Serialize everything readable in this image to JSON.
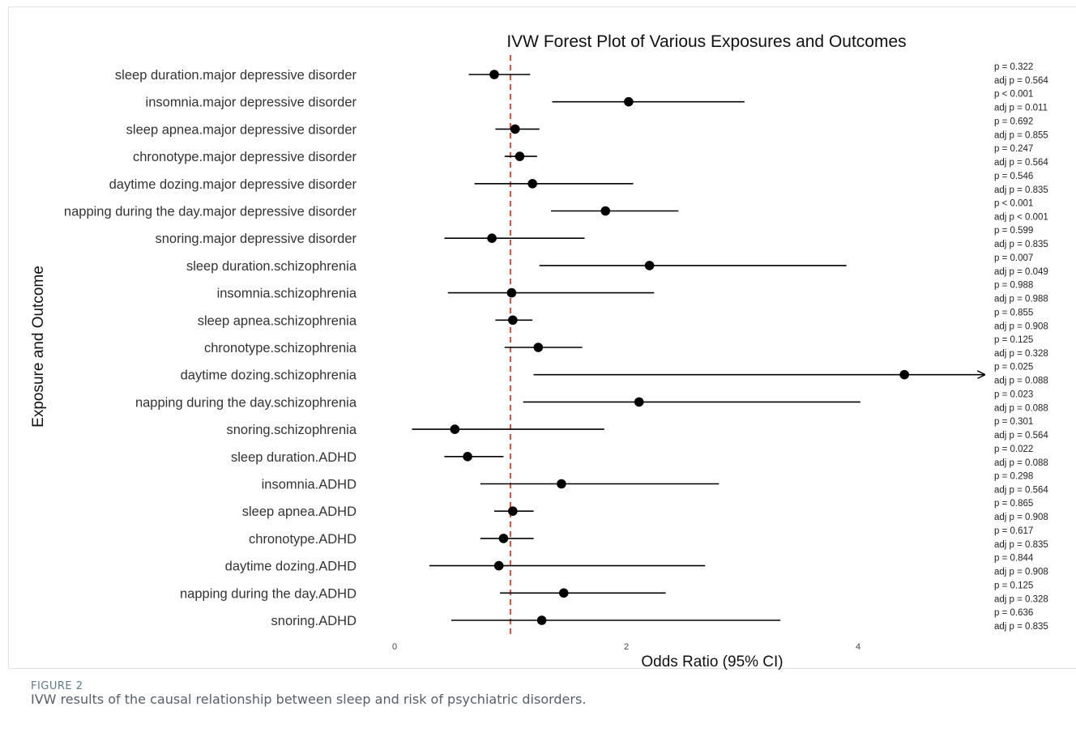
{
  "figure": {
    "label": "FIGURE 2",
    "caption": "IVW results of the causal relationship between sleep and risk of psychiatric disorders."
  },
  "chart_data": {
    "type": "forest",
    "title": "IVW Forest Plot of Various Exposures and Outcomes",
    "xlabel": "Odds Ratio (95% CI)",
    "ylabel": "Exposure and Outcome",
    "xlim": [
      0,
      5
    ],
    "xticks": [
      0,
      2,
      4
    ],
    "reference_line": 1,
    "colors": {
      "reference_line": "#e8392b",
      "point": "#000000",
      "ci": "#000000"
    },
    "rows": [
      {
        "label": "sleep duration.major depressive disorder",
        "or": 0.86,
        "lower": 0.64,
        "upper": 1.17,
        "p": "p = 0.322",
        "adj_p": "adj p = 0.564"
      },
      {
        "label": "insomnia.major depressive disorder",
        "or": 2.02,
        "lower": 1.36,
        "upper": 3.02,
        "p": "p < 0.001",
        "adj_p": "adj p = 0.011"
      },
      {
        "label": "sleep apnea.major depressive disorder",
        "or": 1.04,
        "lower": 0.87,
        "upper": 1.25,
        "p": "p = 0.692",
        "adj_p": "adj p = 0.855"
      },
      {
        "label": "chronotype.major depressive disorder",
        "or": 1.08,
        "lower": 0.95,
        "upper": 1.23,
        "p": "p = 0.247",
        "adj_p": "adj p = 0.564"
      },
      {
        "label": "daytime dozing.major depressive disorder",
        "or": 1.19,
        "lower": 0.69,
        "upper": 2.06,
        "p": "p = 0.546",
        "adj_p": "adj p = 0.835"
      },
      {
        "label": "napping during the day.major depressive disorder",
        "or": 1.82,
        "lower": 1.35,
        "upper": 2.45,
        "p": "p < 0.001",
        "adj_p": "adj p < 0.001"
      },
      {
        "label": "snoring.major depressive disorder",
        "or": 0.84,
        "lower": 0.43,
        "upper": 1.64,
        "p": "p = 0.599",
        "adj_p": "adj p = 0.835"
      },
      {
        "label": "sleep duration.schizophrenia",
        "or": 2.2,
        "lower": 1.25,
        "upper": 3.9,
        "p": "p = 0.007",
        "adj_p": "adj p = 0.049"
      },
      {
        "label": "insomnia.schizophrenia",
        "or": 1.01,
        "lower": 0.46,
        "upper": 2.24,
        "p": "p = 0.988",
        "adj_p": "adj p = 0.988"
      },
      {
        "label": "sleep apnea.schizophrenia",
        "or": 1.02,
        "lower": 0.87,
        "upper": 1.19,
        "p": "p = 0.855",
        "adj_p": "adj p = 0.908"
      },
      {
        "label": "chronotype.schizophrenia",
        "or": 1.24,
        "lower": 0.95,
        "upper": 1.62,
        "p": "p = 0.125",
        "adj_p": "adj p = 0.328"
      },
      {
        "label": "daytime dozing.schizophrenia",
        "or": 4.4,
        "lower": 1.2,
        "upper": 5.0,
        "p": "p = 0.025",
        "adj_p": "adj p = 0.088",
        "arrow": true
      },
      {
        "label": "napping during the day.schizophrenia",
        "or": 2.11,
        "lower": 1.11,
        "upper": 4.02,
        "p": "p = 0.023",
        "adj_p": "adj p = 0.088"
      },
      {
        "label": "snoring.schizophrenia",
        "or": 0.52,
        "lower": 0.15,
        "upper": 1.81,
        "p": "p = 0.301",
        "adj_p": "adj p = 0.564"
      },
      {
        "label": "sleep duration.ADHD",
        "or": 0.63,
        "lower": 0.43,
        "upper": 0.94,
        "p": "p = 0.022",
        "adj_p": "adj p = 0.088"
      },
      {
        "label": "insomnia.ADHD",
        "or": 1.44,
        "lower": 0.74,
        "upper": 2.8,
        "p": "p = 0.298",
        "adj_p": "adj p = 0.564"
      },
      {
        "label": "sleep apnea.ADHD",
        "or": 1.02,
        "lower": 0.86,
        "upper": 1.2,
        "p": "p = 0.865",
        "adj_p": "adj p = 0.908"
      },
      {
        "label": "chronotype.ADHD",
        "or": 0.94,
        "lower": 0.74,
        "upper": 1.2,
        "p": "p = 0.617",
        "adj_p": "adj p = 0.835"
      },
      {
        "label": "daytime dozing.ADHD",
        "or": 0.9,
        "lower": 0.3,
        "upper": 2.68,
        "p": "p = 0.844",
        "adj_p": "adj p = 0.908"
      },
      {
        "label": "napping during the day.ADHD",
        "or": 1.46,
        "lower": 0.91,
        "upper": 2.34,
        "p": "p = 0.125",
        "adj_p": "adj p = 0.328"
      },
      {
        "label": "snoring.ADHD",
        "or": 1.27,
        "lower": 0.49,
        "upper": 3.33,
        "p": "p = 0.636",
        "adj_p": "adj p = 0.835"
      }
    ]
  }
}
